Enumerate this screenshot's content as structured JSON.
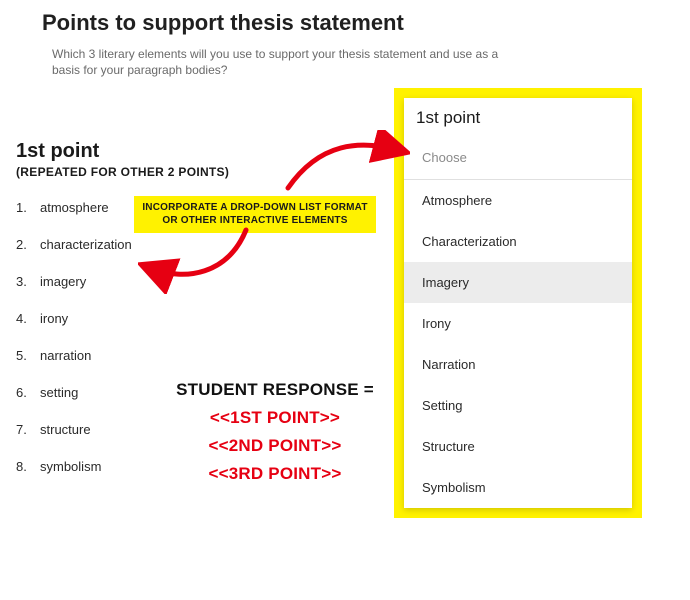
{
  "title": "Points to support thesis statement",
  "prompt": "Which 3 literary elements will you use to support your thesis statement and use as a basis for your paragraph bodies?",
  "colors": {
    "highlight": "#fff200",
    "accent_red": "#e60012",
    "text_dark": "#1a1a1a",
    "text_muted": "#6a6a6a",
    "option_hover": "#ececec",
    "divider": "#e0e0e0",
    "background": "#ffffff"
  },
  "left": {
    "heading": "1st point",
    "subheading": "(REPEATED FOR OTHER 2 POINTS)",
    "options": [
      {
        "n": "1.",
        "label": "atmosphere"
      },
      {
        "n": "2.",
        "label": "characterization"
      },
      {
        "n": "3.",
        "label": "imagery"
      },
      {
        "n": "4.",
        "label": "irony"
      },
      {
        "n": "5.",
        "label": "narration"
      },
      {
        "n": "6.",
        "label": "setting"
      },
      {
        "n": "7.",
        "label": "structure"
      },
      {
        "n": "8.",
        "label": "symbolism"
      }
    ]
  },
  "callout": {
    "line1": "INCORPORATE A DROP-DOWN LIST FORMAT",
    "line2": "OR OTHER INTERACTIVE ELEMENTS"
  },
  "response": {
    "title": "STUDENT RESPONSE =",
    "lines": [
      "<<1ST POINT>>",
      "<<2ND POINT>>",
      "<<3RD POINT>>"
    ]
  },
  "dropdown": {
    "title": "1st point",
    "placeholder": "Choose",
    "selected_index": 2,
    "options": [
      "Atmosphere",
      "Characterization",
      "Imagery",
      "Irony",
      "Narration",
      "Setting",
      "Structure",
      "Symbolism"
    ]
  },
  "arrows": {
    "to_dropdown": {
      "color": "#e60012",
      "stroke_width": 5
    },
    "back_to_list": {
      "color": "#e60012",
      "stroke_width": 5
    }
  }
}
